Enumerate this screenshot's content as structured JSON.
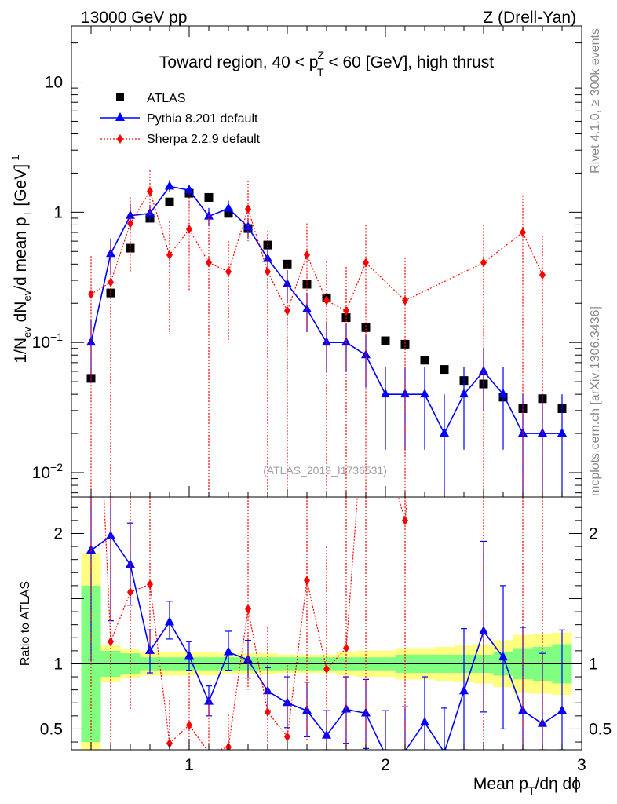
{
  "chart_data": {
    "type": "scatter",
    "header_left": "13000 GeV pp",
    "header_right": "Z (Drell-Yan)",
    "title_parts": [
      "Toward region, 40 < p",
      "Z",
      "T",
      " < 60 [GeV], high thrust"
    ],
    "watermark": "(ATLAS_2019_I1736531)",
    "side_top": "Rivet 4.1.0, ≥ 300k events",
    "side_bottom": "mcplots.cern.ch [arXiv:1306.3436]",
    "ylabel_parts": [
      "1/N",
      "ev",
      " dN",
      "ev",
      "/d mean p",
      "T",
      " [GeV]",
      "-1"
    ],
    "xlabel_parts": [
      "Mean p",
      "T",
      "/dη dϕ"
    ],
    "ratio_ylabel": "Ratio to ATLAS",
    "xlim": [
      0.4,
      3.0
    ],
    "ylim": [
      0.0065,
      27
    ],
    "ratio_ylim": [
      0.34,
      2.28
    ],
    "x_ticks": [
      {
        "v": 1,
        "label": "1"
      },
      {
        "v": 2,
        "label": "2"
      },
      {
        "v": 3,
        "label": "3"
      }
    ],
    "y_ticks": [
      {
        "v": 0.01,
        "base": "10",
        "exp": "−2"
      },
      {
        "v": 0.1,
        "base": "10",
        "exp": "−1"
      },
      {
        "v": 1,
        "base": "1",
        "exp": ""
      },
      {
        "v": 10,
        "base": "10",
        "exp": ""
      }
    ],
    "ratio_ticks": [
      {
        "v": 0.5,
        "label": "0.5"
      },
      {
        "v": 1,
        "label": "1"
      },
      {
        "v": 2,
        "label": "2"
      }
    ],
    "legend": [
      {
        "label": "ATLAS",
        "color": "#000000",
        "marker": "square"
      },
      {
        "label": "Pythia 8.201 default",
        "color": "#0000ff",
        "marker": "triangle"
      },
      {
        "label": "Sherpa 2.2.9 default",
        "color": "#ff0000",
        "marker": "diamond"
      }
    ],
    "bins": [
      0.45,
      0.55,
      0.65,
      0.75,
      0.85,
      0.95,
      1.05,
      1.15,
      1.25,
      1.35,
      1.45,
      1.55,
      1.65,
      1.75,
      1.85,
      1.95,
      2.05,
      2.15,
      2.25,
      2.35,
      2.45,
      2.55,
      2.65,
      2.75,
      2.85,
      2.95
    ],
    "atlas": {
      "name": "ATLAS",
      "x": [
        0.5,
        0.6,
        0.7,
        0.8,
        0.9,
        1.0,
        1.1,
        1.2,
        1.3,
        1.4,
        1.5,
        1.6,
        1.7,
        1.8,
        1.9,
        2.0,
        2.1,
        2.2,
        2.3,
        2.4,
        2.5,
        2.6,
        2.7,
        2.8,
        2.9
      ],
      "y": [
        0.053,
        0.24,
        0.53,
        0.9,
        1.2,
        1.4,
        1.3,
        0.98,
        0.75,
        0.56,
        0.4,
        0.28,
        0.22,
        0.155,
        0.13,
        0.103,
        0.097,
        0.073,
        0.062,
        0.051,
        0.048,
        0.038,
        0.031,
        0.037,
        0.031
      ],
      "stat": [
        0.6,
        0.1,
        0.08,
        0.05,
        0.05,
        0.05,
        0.05,
        0.05,
        0.05,
        0.05,
        0.05,
        0.05,
        0.05,
        0.05,
        0.05,
        0.05,
        0.07,
        0.07,
        0.07,
        0.07,
        0.07,
        0.09,
        0.12,
        0.13,
        0.15
      ],
      "tot": [
        0.85,
        0.14,
        0.11,
        0.09,
        0.09,
        0.09,
        0.09,
        0.08,
        0.08,
        0.08,
        0.07,
        0.07,
        0.07,
        0.09,
        0.1,
        0.1,
        0.12,
        0.12,
        0.13,
        0.14,
        0.15,
        0.18,
        0.22,
        0.23,
        0.24
      ]
    },
    "series": [
      {
        "name": "Pythia 8.201 default",
        "color": "#0000ff",
        "marker": "triangle",
        "line": "solid",
        "x": [
          0.5,
          0.6,
          0.7,
          0.8,
          0.9,
          1.0,
          1.1,
          1.2,
          1.3,
          1.4,
          1.5,
          1.6,
          1.7,
          1.8,
          1.9,
          2.0,
          2.1,
          2.2,
          2.3,
          2.4,
          2.5,
          2.6,
          2.7,
          2.8,
          2.9
        ],
        "y": [
          0.1,
          0.48,
          0.94,
          0.98,
          1.58,
          1.48,
          0.93,
          1.07,
          0.77,
          0.44,
          0.28,
          0.18,
          0.1,
          0.1,
          0.08,
          0.04,
          0.04,
          0.04,
          0.02,
          0.04,
          0.06,
          0.04,
          0.02,
          0.02,
          0.02
        ],
        "ylo": [
          0.05,
          0.33,
          0.74,
          0.84,
          1.43,
          1.33,
          0.78,
          0.93,
          0.64,
          0.34,
          0.2,
          0.12,
          0.06,
          0.06,
          0.045,
          0.015,
          0.015,
          0.015,
          0.003,
          0.015,
          0.03,
          0.015,
          0.003,
          0.003,
          0.003
        ],
        "yhi": [
          0.15,
          0.63,
          1.15,
          1.13,
          1.77,
          1.63,
          1.08,
          1.23,
          0.9,
          0.54,
          0.36,
          0.24,
          0.14,
          0.14,
          0.115,
          0.065,
          0.065,
          0.065,
          0.04,
          0.065,
          0.09,
          0.065,
          0.04,
          0.04,
          0.04
        ],
        "ratio": [
          1.87,
          1.98,
          1.76,
          1.1,
          1.32,
          1.06,
          0.71,
          1.09,
          1.03,
          0.79,
          0.7,
          0.64,
          0.45,
          0.65,
          0.62,
          0.3,
          0.33,
          0.55,
          0.32,
          0.79,
          1.25,
          1.05,
          0.64,
          0.54,
          0.64
        ],
        "rlo": [
          1.03,
          1.33,
          1.45,
          0.93,
          1.19,
          0.95,
          0.6,
          0.95,
          0.89,
          0.64,
          0.51,
          0.44,
          0.27,
          0.39,
          0.35,
          0.1,
          0.1,
          0.2,
          0.1,
          0.3,
          0.63,
          0.5,
          0.1,
          0.1,
          0.1
        ],
        "rhi": [
          2.7,
          2.6,
          2.08,
          1.26,
          1.48,
          1.17,
          0.83,
          1.25,
          1.18,
          0.97,
          0.9,
          0.86,
          0.64,
          0.9,
          0.88,
          0.64,
          0.67,
          0.9,
          0.66,
          1.27,
          1.94,
          1.6,
          1.28,
          1.08,
          1.26
        ]
      },
      {
        "name": "Sherpa 2.2.9 default",
        "color": "#ff0000",
        "marker": "diamond",
        "line": "dotted",
        "x": [
          0.5,
          0.6,
          0.7,
          0.8,
          0.9,
          1.0,
          1.1,
          1.2,
          1.3,
          1.4,
          1.5,
          1.6,
          1.7,
          1.8,
          1.9,
          2.1,
          2.5,
          2.7,
          2.8
        ],
        "y": [
          0.235,
          0.29,
          0.82,
          1.45,
          0.47,
          0.74,
          0.41,
          0.35,
          1.06,
          0.35,
          0.175,
          0.47,
          0.21,
          0.175,
          0.41,
          0.21,
          0.41,
          0.7,
          0.33
        ],
        "ylo": [
          0.005,
          0.005,
          0.35,
          0.95,
          0.12,
          0.25,
          0.005,
          0.1,
          0.6,
          0.005,
          0.005,
          0.12,
          0.005,
          0.005,
          0.005,
          0.005,
          0.005,
          0.005,
          0.005
        ],
        "yhi": [
          0.46,
          0.57,
          1.3,
          2.1,
          0.85,
          1.3,
          0.95,
          0.6,
          1.75,
          0.72,
          0.4,
          0.82,
          0.42,
          0.38,
          0.8,
          0.45,
          0.8,
          1.35,
          0.66
        ],
        "ratio": [
          4.4,
          1.17,
          1.55,
          1.61,
          0.39,
          0.53,
          0.32,
          0.36,
          1.42,
          0.63,
          0.44,
          1.64,
          0.96,
          1.12,
          3.15,
          2.1,
          8.5,
          22.0,
          8.9
        ],
        "rlo": [
          0.1,
          0.1,
          0.65,
          1.06,
          0.1,
          0.1,
          0.1,
          0.1,
          0.8,
          0.1,
          0.1,
          0.4,
          0.1,
          0.1,
          0.1,
          0.1,
          0.1,
          0.1,
          0.1
        ],
        "rhi": [
          8.0,
          2.3,
          2.45,
          2.35,
          0.72,
          0.93,
          0.73,
          0.61,
          2.33,
          1.28,
          0.99,
          2.93,
          1.9,
          2.45,
          6.2,
          4.6,
          17.0,
          44.0,
          18.0
        ]
      }
    ]
  }
}
